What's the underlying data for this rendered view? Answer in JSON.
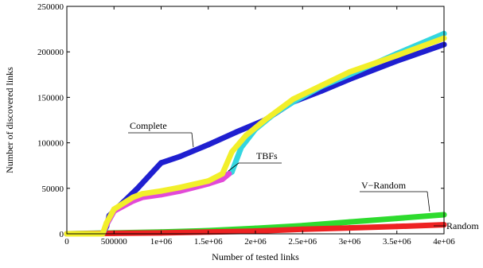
{
  "chart_data": {
    "type": "line",
    "xlabel": "Number of tested links",
    "ylabel": "Number of discovered links",
    "xlim": [
      0,
      4000000
    ],
    "ylim": [
      0,
      250000
    ],
    "x_ticks": [
      {
        "value": 0,
        "label": "0"
      },
      {
        "value": 500000,
        "label": "500000"
      },
      {
        "value": 1000000,
        "label": "1e+06"
      },
      {
        "value": 1500000,
        "label": "1.5e+06"
      },
      {
        "value": 2000000,
        "label": "2e+06"
      },
      {
        "value": 2500000,
        "label": "2.5e+06"
      },
      {
        "value": 3000000,
        "label": "3e+06"
      },
      {
        "value": 3500000,
        "label": "3.5e+06"
      },
      {
        "value": 4000000,
        "label": "4e+06"
      }
    ],
    "y_ticks": [
      {
        "value": 0,
        "label": "0"
      },
      {
        "value": 50000,
        "label": "50000"
      },
      {
        "value": 100000,
        "label": "100000"
      },
      {
        "value": 150000,
        "label": "150000"
      },
      {
        "value": 200000,
        "label": "200000"
      },
      {
        "value": 250000,
        "label": "250000"
      }
    ],
    "grid": false,
    "legend": "none",
    "series": [
      {
        "name": "Complete",
        "color": "#1f1fd0",
        "points": [
          [
            0,
            0
          ],
          [
            380000,
            0
          ],
          [
            420000,
            8000
          ],
          [
            450000,
            20000
          ],
          [
            600000,
            35000
          ],
          [
            750000,
            50000
          ],
          [
            1000000,
            78000
          ],
          [
            1200000,
            85000
          ],
          [
            1500000,
            98000
          ],
          [
            1800000,
            112000
          ],
          [
            2100000,
            125000
          ],
          [
            2400000,
            145000
          ],
          [
            2700000,
            157000
          ],
          [
            3000000,
            170000
          ],
          [
            3500000,
            190000
          ],
          [
            4000000,
            208000
          ]
        ]
      },
      {
        "name": "TBFs",
        "color": "#33d6e0",
        "points": [
          [
            0,
            0
          ],
          [
            380000,
            0
          ],
          [
            420000,
            10000
          ],
          [
            500000,
            25000
          ],
          [
            700000,
            38000
          ],
          [
            800000,
            42000
          ],
          [
            1000000,
            45000
          ],
          [
            1200000,
            50000
          ],
          [
            1500000,
            56000
          ],
          [
            1650000,
            62000
          ],
          [
            1750000,
            68000
          ],
          [
            1850000,
            95000
          ],
          [
            2000000,
            115000
          ],
          [
            2200000,
            132000
          ],
          [
            2400000,
            145000
          ],
          [
            2700000,
            162000
          ],
          [
            3000000,
            175000
          ],
          [
            3500000,
            198000
          ],
          [
            4000000,
            220000
          ]
        ]
      },
      {
        "name": "",
        "color": "#e24ad8",
        "points": [
          [
            0,
            0
          ],
          [
            380000,
            0
          ],
          [
            420000,
            10000
          ],
          [
            500000,
            25000
          ],
          [
            700000,
            36000
          ],
          [
            800000,
            40000
          ],
          [
            1000000,
            43000
          ],
          [
            1200000,
            47000
          ],
          [
            1500000,
            55000
          ],
          [
            1650000,
            60000
          ],
          [
            1720000,
            66000
          ]
        ]
      },
      {
        "name": "",
        "color": "#f2ef2a",
        "points": [
          [
            0,
            0
          ],
          [
            380000,
            0
          ],
          [
            420000,
            12000
          ],
          [
            500000,
            27000
          ],
          [
            700000,
            40000
          ],
          [
            800000,
            44000
          ],
          [
            1000000,
            47000
          ],
          [
            1200000,
            51000
          ],
          [
            1500000,
            58000
          ],
          [
            1650000,
            66000
          ],
          [
            1750000,
            90000
          ],
          [
            1900000,
            108000
          ],
          [
            2100000,
            125000
          ],
          [
            2400000,
            148000
          ],
          [
            2700000,
            163000
          ],
          [
            3000000,
            178000
          ],
          [
            3500000,
            196000
          ],
          [
            4000000,
            215000
          ]
        ]
      },
      {
        "name": "V-Random",
        "color": "#2edb2e",
        "points": [
          [
            0,
            0
          ],
          [
            500000,
            1000
          ],
          [
            1000000,
            2000
          ],
          [
            1500000,
            3500
          ],
          [
            2000000,
            6000
          ],
          [
            2500000,
            9000
          ],
          [
            3000000,
            13000
          ],
          [
            3500000,
            17000
          ],
          [
            4000000,
            21000
          ]
        ]
      },
      {
        "name": "Random",
        "color": "#ee2222",
        "points": [
          [
            0,
            0
          ],
          [
            500000,
            500
          ],
          [
            1000000,
            1000
          ],
          [
            1500000,
            2000
          ],
          [
            2000000,
            3000
          ],
          [
            2500000,
            5000
          ],
          [
            3000000,
            6500
          ],
          [
            3500000,
            8000
          ],
          [
            4000000,
            10000
          ]
        ]
      }
    ],
    "annotations": [
      {
        "text": "Complete",
        "series": "Complete"
      },
      {
        "text": "TBFs",
        "series": "TBFs"
      },
      {
        "text": "V−Random",
        "series": "V-Random"
      },
      {
        "text": "Random",
        "series": "Random"
      }
    ]
  }
}
